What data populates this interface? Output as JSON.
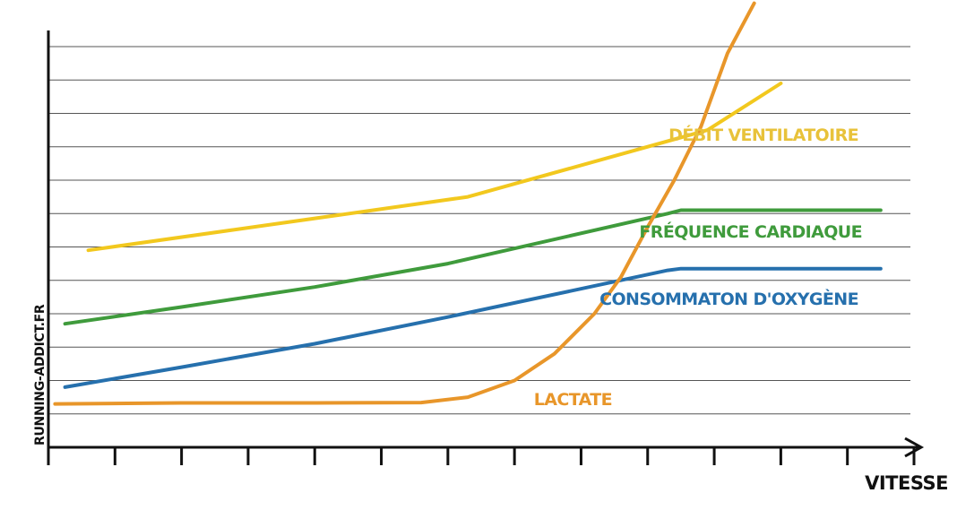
{
  "chart_data": {
    "type": "line",
    "watermark": "RUNNING-ADDICT.FR",
    "xlabel": "VITESSE",
    "ylabel": "",
    "xlim": [
      0,
      13
    ],
    "ylim": [
      0,
      12
    ],
    "grid": true,
    "x_ticks": 13,
    "series": [
      {
        "name": "DÉBIT VENTILATOIRE",
        "color": "#f2c81e",
        "label_color": "#e8c23a",
        "points": [
          [
            0.6,
            5.9
          ],
          [
            6.3,
            7.5
          ],
          [
            9.9,
            9.5
          ],
          [
            11.0,
            10.9
          ]
        ]
      },
      {
        "name": "FRÉQUENCE CARDIAQUE",
        "color": "#3f9b3c",
        "label_color": "#3f9b3c",
        "points": [
          [
            0.25,
            3.7
          ],
          [
            2.0,
            4.2
          ],
          [
            4.0,
            4.8
          ],
          [
            6.0,
            5.5
          ],
          [
            9.3,
            7.0
          ],
          [
            9.5,
            7.1
          ],
          [
            12.5,
            7.1
          ]
        ]
      },
      {
        "name": "CONSOMMATON D'OXYGÈNE",
        "color": "#2670ad",
        "label_color": "#2670ad",
        "points": [
          [
            0.25,
            1.8
          ],
          [
            2.0,
            2.4
          ],
          [
            4.0,
            3.1
          ],
          [
            6.0,
            3.9
          ],
          [
            9.3,
            5.3
          ],
          [
            9.5,
            5.35
          ],
          [
            12.5,
            5.35
          ]
        ]
      },
      {
        "name": "LACTATE",
        "color": "#e8962a",
        "label_color": "#e8962a",
        "points": [
          [
            0.1,
            1.3
          ],
          [
            2.0,
            1.33
          ],
          [
            4.0,
            1.33
          ],
          [
            5.6,
            1.34
          ],
          [
            6.3,
            1.5
          ],
          [
            7.0,
            2.0
          ],
          [
            7.6,
            2.8
          ],
          [
            8.2,
            4.0
          ],
          [
            8.6,
            5.1
          ],
          [
            9.0,
            6.6
          ],
          [
            9.4,
            8.0
          ],
          [
            9.8,
            9.6
          ],
          [
            10.2,
            11.8
          ],
          [
            10.6,
            13.3
          ]
        ]
      }
    ]
  }
}
